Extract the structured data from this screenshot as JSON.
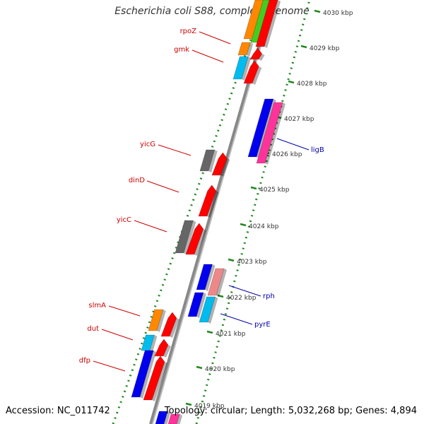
{
  "title": "Escherichia coli S88, complete genome",
  "footer": {
    "accession": "Accession: NC_011742",
    "summary": "Topology: circular; Length: 5,032,268 bp; Genes: 4,894"
  },
  "scale": {
    "unit": "kbp",
    "ticks": [
      4030,
      4029,
      4028,
      4027,
      4026,
      4025,
      4024,
      4023,
      4022,
      4021,
      4020,
      4019
    ]
  },
  "gene_labels": [
    {
      "name": "rpoZ",
      "strand": "reverse",
      "color": "#cc0000"
    },
    {
      "name": "gmk",
      "strand": "reverse",
      "color": "#cc0000"
    },
    {
      "name": "yicG",
      "strand": "reverse",
      "color": "#cc0000"
    },
    {
      "name": "dinD",
      "strand": "reverse",
      "color": "#cc0000"
    },
    {
      "name": "yicC",
      "strand": "reverse",
      "color": "#cc0000"
    },
    {
      "name": "slmA",
      "strand": "reverse",
      "color": "#cc0000"
    },
    {
      "name": "dut",
      "strand": "reverse",
      "color": "#cc0000"
    },
    {
      "name": "dfp",
      "strand": "reverse",
      "color": "#cc0000"
    },
    {
      "name": "ligB",
      "strand": "forward",
      "color": "#0000aa"
    },
    {
      "name": "rph",
      "strand": "forward",
      "color": "#0000aa"
    },
    {
      "name": "pyrE",
      "strand": "forward",
      "color": "#0000aa"
    }
  ],
  "colors": {
    "cds_forward": "#ff0000",
    "gene_blue": "#0000ee",
    "gene_cyan": "#00bbee",
    "gene_gray": "#666666",
    "gene_orange": "#ff8800",
    "gene_green": "#44cc22",
    "gene_pink": "#ff3399",
    "gene_salmon": "#ee8888",
    "backbone": "#888888",
    "dots": "#228822"
  }
}
